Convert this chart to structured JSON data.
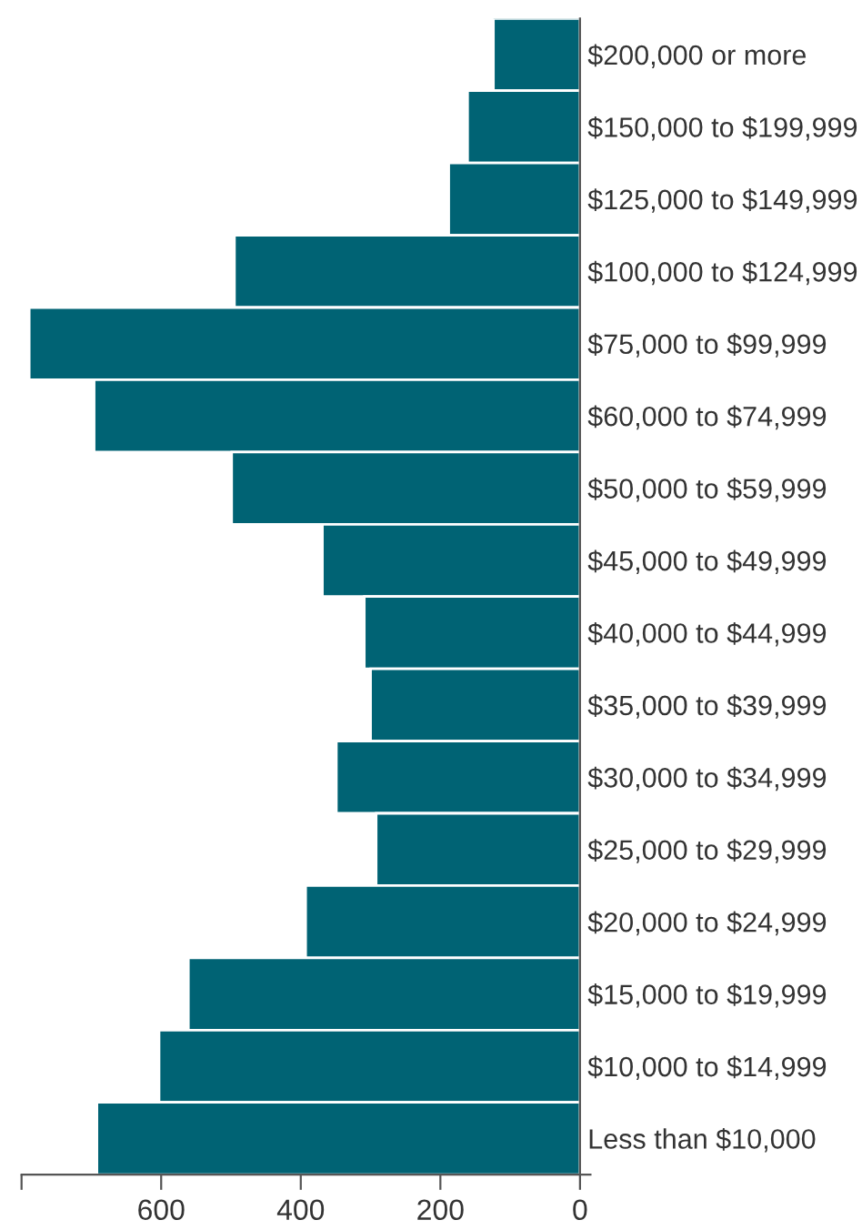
{
  "chart_data": {
    "type": "bar",
    "orientation": "horizontal",
    "color": "#006374",
    "categories": [
      "$200,000 or more",
      "$150,000 to $199,999",
      "$125,000 to $149,999",
      "$100,000 to $124,999",
      "$75,000 to $99,999",
      "$60,000 to $74,999",
      "$50,000 to $59,999",
      "$45,000 to $49,999",
      "$40,000 to $44,999",
      "$35,000 to $39,999",
      "$30,000 to $34,999",
      "$25,000 to $29,999",
      "$20,000 to $24,999",
      "$15,000 to $19,999",
      "$10,000 to $14,999",
      "Less than $10,000"
    ],
    "values": [
      124,
      161,
      188,
      495,
      789,
      696,
      499,
      369,
      309,
      300,
      349,
      292,
      393,
      561,
      603,
      692
    ],
    "xlim": [
      800,
      -15
    ],
    "xticks": [
      {
        "value": 800,
        "label": null
      },
      600,
      400,
      200,
      0
    ],
    "grid": false,
    "legend": false
  }
}
